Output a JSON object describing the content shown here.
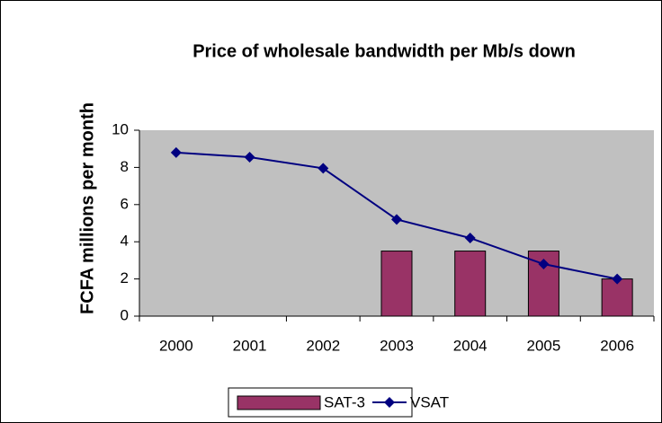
{
  "chart_data": {
    "type": "combo",
    "title": "Price of wholesale bandwidth per Mb/s down",
    "y_label": "FCFA millions per month",
    "categories": [
      "2000",
      "2001",
      "2002",
      "2003",
      "2004",
      "2005",
      "2006"
    ],
    "series": [
      {
        "name": "SAT-3",
        "type": "bar",
        "color": "#993366",
        "values": [
          null,
          null,
          null,
          3.5,
          3.5,
          3.5,
          2
        ]
      },
      {
        "name": "VSAT",
        "type": "line",
        "color": "#000080",
        "values": [
          8.8,
          8.55,
          7.95,
          5.2,
          4.2,
          2.8,
          2.0
        ]
      }
    ],
    "ylim": [
      0,
      10
    ],
    "yticks": [
      0,
      2,
      4,
      6,
      8,
      10
    ],
    "plot_background": "#c0c0c0",
    "legend": "bottom"
  }
}
